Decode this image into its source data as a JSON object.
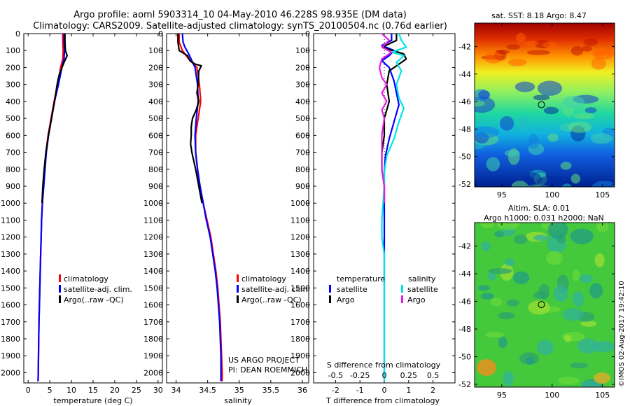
{
  "title": {
    "line1": "Argo profile: aoml 5903314_10 04-May-2010 46.228S 98.935E (DM data)",
    "line2": "Climatology: CARS2009. Satellite-adjusted climatology: synTS_20100504.nc (0.76d earlier)"
  },
  "colors": {
    "climatology": "#ff0000",
    "satellite": "#0000ff",
    "argo": "#000000",
    "t_satellite": "#0000ff",
    "t_argo": "#000000",
    "s_satellite": "#00e5e5",
    "s_argo": "#e020e0"
  },
  "depth_axis": {
    "ticks": [
      0,
      100,
      200,
      300,
      400,
      500,
      600,
      700,
      800,
      900,
      1000,
      1100,
      1200,
      1300,
      1400,
      1500,
      1600,
      1700,
      1800,
      1900,
      2000
    ],
    "ylim": [
      2060,
      0
    ]
  },
  "chart_data": [
    {
      "type": "line",
      "id": "temperature",
      "xlabel": "temperature (deg C)",
      "xlim": [
        -1,
        31
      ],
      "xticks": [
        0,
        5,
        10,
        15,
        20,
        25,
        30
      ],
      "legend": [
        "climatology",
        "satellite-adj. clim.",
        "Argo(..raw -QC)"
      ],
      "series": [
        {
          "name": "climatology",
          "color_key": "climatology",
          "points": [
            [
              8.0,
              0
            ],
            [
              8.0,
              50
            ],
            [
              8.1,
              100
            ],
            [
              8.0,
              150
            ],
            [
              7.5,
              200
            ],
            [
              6.8,
              300
            ],
            [
              6.0,
              400
            ],
            [
              5.3,
              500
            ],
            [
              4.6,
              600
            ],
            [
              4.1,
              700
            ],
            [
              3.8,
              800
            ],
            [
              3.5,
              900
            ],
            [
              3.3,
              1000
            ],
            [
              3.1,
              1100
            ],
            [
              3.0,
              1200
            ],
            [
              2.9,
              1300
            ],
            [
              2.8,
              1400
            ],
            [
              2.7,
              1500
            ],
            [
              2.6,
              1600
            ],
            [
              2.5,
              1700
            ],
            [
              2.45,
              1800
            ],
            [
              2.4,
              1900
            ],
            [
              2.35,
              2000
            ],
            [
              2.3,
              2050
            ]
          ]
        },
        {
          "name": "satellite-adj. clim.",
          "color_key": "satellite",
          "points": [
            [
              8.3,
              0
            ],
            [
              8.3,
              50
            ],
            [
              8.4,
              100
            ],
            [
              8.3,
              150
            ],
            [
              7.8,
              200
            ],
            [
              7.0,
              300
            ],
            [
              6.1,
              400
            ],
            [
              5.4,
              500
            ],
            [
              4.7,
              600
            ],
            [
              4.2,
              700
            ],
            [
              3.9,
              800
            ],
            [
              3.6,
              900
            ],
            [
              3.3,
              1000
            ],
            [
              3.1,
              1100
            ],
            [
              3.0,
              1200
            ],
            [
              2.9,
              1300
            ],
            [
              2.8,
              1400
            ],
            [
              2.7,
              1500
            ],
            [
              2.6,
              1600
            ],
            [
              2.5,
              1700
            ],
            [
              2.45,
              1800
            ],
            [
              2.4,
              1900
            ],
            [
              2.35,
              2000
            ],
            [
              2.3,
              2050
            ]
          ]
        },
        {
          "name": "Argo(..raw -QC)",
          "color_key": "argo",
          "points": [
            [
              8.5,
              0
            ],
            [
              8.5,
              50
            ],
            [
              8.6,
              100
            ],
            [
              9.0,
              130
            ],
            [
              8.3,
              170
            ],
            [
              7.8,
              200
            ],
            [
              7.1,
              250
            ],
            [
              6.7,
              300
            ],
            [
              6.1,
              400
            ],
            [
              5.4,
              500
            ],
            [
              4.7,
              600
            ],
            [
              4.1,
              700
            ],
            [
              3.7,
              800
            ],
            [
              3.4,
              900
            ],
            [
              3.2,
              1000
            ]
          ]
        }
      ]
    },
    {
      "type": "line",
      "id": "salinity",
      "xlabel": "salinity",
      "xlim": [
        33.85,
        36.1
      ],
      "xticks": [
        34,
        34.5,
        35,
        35.5,
        36
      ],
      "legend": [
        "climatology",
        "satellite-adj. clim.",
        "Argo(..raw -QC)"
      ],
      "annotation": [
        "US ARGO PROJECT",
        "PI: DEAN ROEMMICH"
      ],
      "series": [
        {
          "name": "climatology",
          "color_key": "climatology",
          "points": [
            [
              34.05,
              0
            ],
            [
              34.05,
              50
            ],
            [
              34.1,
              100
            ],
            [
              34.2,
              150
            ],
            [
              34.33,
              200
            ],
            [
              34.37,
              300
            ],
            [
              34.39,
              400
            ],
            [
              34.35,
              500
            ],
            [
              34.31,
              600
            ],
            [
              34.31,
              700
            ],
            [
              34.34,
              800
            ],
            [
              34.38,
              900
            ],
            [
              34.43,
              1000
            ],
            [
              34.49,
              1100
            ],
            [
              34.55,
              1200
            ],
            [
              34.59,
              1300
            ],
            [
              34.63,
              1400
            ],
            [
              34.66,
              1500
            ],
            [
              34.68,
              1600
            ],
            [
              34.7,
              1700
            ],
            [
              34.71,
              1800
            ],
            [
              34.72,
              1900
            ],
            [
              34.73,
              2000
            ],
            [
              34.73,
              2050
            ]
          ]
        },
        {
          "name": "satellite-adj. clim.",
          "color_key": "satellite",
          "points": [
            [
              34.1,
              0
            ],
            [
              34.11,
              50
            ],
            [
              34.14,
              80
            ],
            [
              34.2,
              120
            ],
            [
              34.3,
              200
            ],
            [
              34.34,
              300
            ],
            [
              34.35,
              400
            ],
            [
              34.32,
              500
            ],
            [
              34.3,
              600
            ],
            [
              34.31,
              700
            ],
            [
              34.34,
              800
            ],
            [
              34.38,
              900
            ],
            [
              34.43,
              1000
            ],
            [
              34.48,
              1100
            ],
            [
              34.54,
              1200
            ],
            [
              34.58,
              1300
            ],
            [
              34.62,
              1400
            ],
            [
              34.65,
              1500
            ],
            [
              34.67,
              1600
            ],
            [
              34.69,
              1700
            ],
            [
              34.7,
              1800
            ],
            [
              34.71,
              1900
            ],
            [
              34.71,
              2000
            ],
            [
              34.71,
              2050
            ]
          ]
        },
        {
          "name": "Argo(..raw -QC)",
          "color_key": "argo",
          "points": [
            [
              34.03,
              0
            ],
            [
              34.03,
              50
            ],
            [
              34.05,
              100
            ],
            [
              34.18,
              130
            ],
            [
              34.22,
              160
            ],
            [
              34.3,
              180
            ],
            [
              34.4,
              190
            ],
            [
              34.36,
              220
            ],
            [
              34.35,
              300
            ],
            [
              34.33,
              350
            ],
            [
              34.36,
              400
            ],
            [
              34.32,
              450
            ],
            [
              34.26,
              500
            ],
            [
              34.24,
              550
            ],
            [
              34.24,
              600
            ],
            [
              34.23,
              650
            ],
            [
              34.25,
              700
            ],
            [
              34.31,
              800
            ],
            [
              34.36,
              900
            ],
            [
              34.41,
              1000
            ]
          ]
        }
      ]
    },
    {
      "type": "line",
      "id": "difference",
      "xlabel": "T difference from climatology",
      "xlabel2": "S difference from climatology",
      "xlim": [
        -2.9,
        2.9
      ],
      "xticks": [
        -2,
        -1,
        0,
        1,
        2
      ],
      "xticks_s": [
        "-0.5",
        "-0.25",
        "0",
        "0.25",
        "0.5"
      ],
      "legend_temperature_title": "temperature",
      "legend_salinity_title": "salinity",
      "legend_temperature": [
        "satellite",
        "Argo"
      ],
      "legend_salinity": [
        "satellite",
        "Argo"
      ],
      "series": [
        {
          "name": "satellite",
          "group": "temperature",
          "color_key": "t_satellite",
          "points": [
            [
              0.3,
              0
            ],
            [
              0.3,
              40
            ],
            [
              -0.1,
              70
            ],
            [
              0.4,
              100
            ],
            [
              0.2,
              130
            ],
            [
              -0.1,
              160
            ],
            [
              0.2,
              200
            ],
            [
              0.4,
              280
            ],
            [
              0.5,
              350
            ],
            [
              0.6,
              420
            ],
            [
              0.4,
              520
            ],
            [
              0.2,
              620
            ],
            [
              0.05,
              720
            ],
            [
              0.0,
              820
            ],
            [
              0.0,
              1000
            ],
            [
              0.0,
              1200
            ],
            [
              0.0,
              1400
            ],
            [
              0.0,
              1600
            ],
            [
              0.0,
              1800
            ],
            [
              0.0,
              2000
            ],
            [
              0.0,
              2050
            ]
          ]
        },
        {
          "name": "Argo",
          "group": "temperature",
          "color_key": "t_argo",
          "points": [
            [
              0.5,
              0
            ],
            [
              0.5,
              40
            ],
            [
              -0.1,
              80
            ],
            [
              0.8,
              120
            ],
            [
              0.9,
              150
            ],
            [
              0.6,
              180
            ],
            [
              0.2,
              220
            ],
            [
              0.1,
              300
            ],
            [
              0.2,
              400
            ],
            [
              0.0,
              500
            ],
            [
              0.0,
              600
            ],
            [
              -0.1,
              700
            ],
            [
              -0.1,
              800
            ],
            [
              0.0,
              900
            ],
            [
              0.0,
              1000
            ]
          ]
        },
        {
          "name": "satellite",
          "group": "salinity",
          "color_key": "s_satellite",
          "points": [
            [
              0.6,
              0
            ],
            [
              0.7,
              40
            ],
            [
              0.9,
              80
            ],
            [
              0.3,
              110
            ],
            [
              0.8,
              130
            ],
            [
              0.5,
              170
            ],
            [
              0.7,
              220
            ],
            [
              0.5,
              300
            ],
            [
              0.6,
              380
            ],
            [
              0.8,
              440
            ],
            [
              0.6,
              520
            ],
            [
              0.4,
              620
            ],
            [
              0.1,
              720
            ],
            [
              0.0,
              820
            ],
            [
              0.0,
              900
            ],
            [
              -0.05,
              1000
            ],
            [
              -0.1,
              1100
            ],
            [
              -0.1,
              1200
            ],
            [
              0.0,
              1300
            ],
            [
              0.0,
              1400
            ],
            [
              0.0,
              1600
            ],
            [
              0.0,
              1800
            ],
            [
              0.0,
              2000
            ],
            [
              0.0,
              2050
            ]
          ]
        },
        {
          "name": "Argo",
          "group": "salinity",
          "color_key": "s_argo",
          "points": [
            [
              -0.1,
              0
            ],
            [
              0.2,
              40
            ],
            [
              -0.1,
              80
            ],
            [
              0.3,
              110
            ],
            [
              -0.1,
              150
            ],
            [
              -0.2,
              200
            ],
            [
              -0.1,
              260
            ],
            [
              0.1,
              300
            ],
            [
              -0.1,
              350
            ],
            [
              0.1,
              400
            ],
            [
              -0.1,
              450
            ],
            [
              0.0,
              500
            ],
            [
              -0.1,
              600
            ],
            [
              -0.1,
              700
            ],
            [
              -0.1,
              800
            ],
            [
              0.0,
              900
            ],
            [
              0.0,
              1000
            ]
          ]
        }
      ]
    }
  ],
  "maps": {
    "sst": {
      "title": "sat. SST: 8.18 Argo: 8.47",
      "yticks": [
        -42,
        -44,
        -46,
        -48,
        -50,
        -52
      ],
      "xticks": [
        95,
        100,
        105
      ],
      "ylim": [
        -52.2,
        -40.3
      ],
      "xlim": [
        92.3,
        106.2
      ],
      "marker": {
        "lon": 98.935,
        "lat": -46.228
      }
    },
    "sla": {
      "title1": "Altim. SLA: 0.01",
      "title2": "Argo h1000: 0.031 h2000: NaN",
      "yticks": [
        -42,
        -44,
        -46,
        -48,
        -50,
        -52
      ],
      "xticks": [
        95,
        100,
        105
      ],
      "ylim": [
        -52.2,
        -40.3
      ],
      "xlim": [
        92.3,
        106.2
      ],
      "marker": {
        "lon": 98.935,
        "lat": -46.228
      }
    }
  },
  "credit": "©IMOS 02-Aug-2017 19:42:10"
}
